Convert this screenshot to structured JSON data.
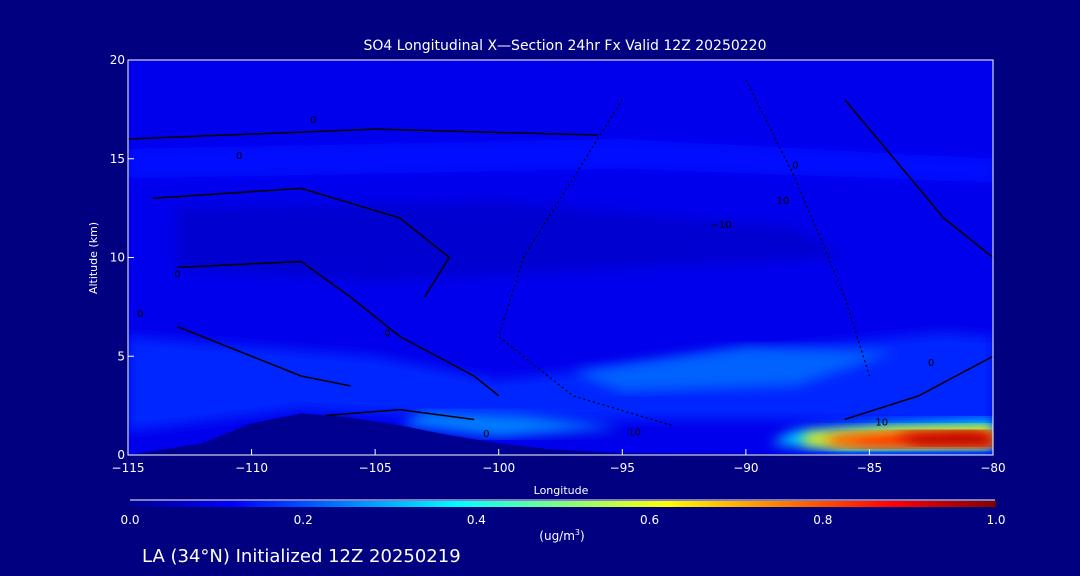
{
  "chart_data": {
    "type": "heatmap",
    "title": "SO4 Longitudinal X—Section 24hr  Fx Valid 12Z 20250220",
    "xlabel": "Longitude",
    "ylabel": "Altitude (km)",
    "xlim": [
      -115,
      -80
    ],
    "ylim": [
      0,
      20
    ],
    "xticks": [
      -115,
      -110,
      -105,
      -100,
      -95,
      -90,
      -85,
      -80
    ],
    "xtick_labels": [
      "−115",
      "−110",
      "−105",
      "−100",
      "−95",
      "−90",
      "−85",
      "−80"
    ],
    "yticks": [
      0,
      5,
      10,
      15,
      20
    ],
    "ytick_labels": [
      "0",
      "5",
      "10",
      "15",
      "20"
    ],
    "colorbar": {
      "range": [
        0.0,
        1.0
      ],
      "tick_labels": [
        "0.0",
        "0.2",
        "0.4",
        "0.6",
        "0.8",
        "1.0"
      ],
      "units_prefix": "(ug/m",
      "units_sup": "3",
      "units_suffix": ")"
    },
    "field_regions": [
      {
        "value": 0.1,
        "points": [
          [
            -115,
            20
          ],
          [
            -80,
            20
          ],
          [
            -80,
            0
          ],
          [
            -115,
            0
          ]
        ]
      },
      {
        "value": 0.07,
        "points": [
          [
            -113,
            12.5
          ],
          [
            -100,
            12.8
          ],
          [
            -88,
            11.5
          ],
          [
            -86,
            10
          ],
          [
            -95,
            9.5
          ],
          [
            -105,
            8.8
          ],
          [
            -113,
            9.5
          ]
        ]
      },
      {
        "value": 0.13,
        "points": [
          [
            -115,
            15.5
          ],
          [
            -95,
            16
          ],
          [
            -80,
            15
          ],
          [
            -80,
            13.8
          ],
          [
            -95,
            14.5
          ],
          [
            -115,
            14
          ]
        ]
      },
      {
        "value": 0.16,
        "points": [
          [
            -115,
            6
          ],
          [
            -105,
            5
          ],
          [
            -100,
            3.8
          ],
          [
            -95,
            4.5
          ],
          [
            -88,
            5.5
          ],
          [
            -82,
            6.2
          ],
          [
            -80,
            6
          ],
          [
            -80,
            1.5
          ],
          [
            -88,
            1.8
          ],
          [
            -95,
            1.8
          ],
          [
            -100,
            1.8
          ],
          [
            -108,
            2.3
          ],
          [
            -115,
            1.2
          ]
        ]
      },
      {
        "value": 0.22,
        "points": [
          [
            -97,
            4.2
          ],
          [
            -90,
            5.5
          ],
          [
            -84,
            5.2
          ],
          [
            -88,
            3.5
          ],
          [
            -95,
            3.2
          ]
        ]
      },
      {
        "value": 0.25,
        "points": [
          [
            -103,
            2.2
          ],
          [
            -99,
            2
          ],
          [
            -95,
            1.4
          ],
          [
            -100,
            0.9
          ],
          [
            -104,
            1.5
          ]
        ]
      },
      {
        "value": 0.35,
        "points": [
          [
            -88,
            1.2
          ],
          [
            -84,
            1.6
          ],
          [
            -80,
            1.8
          ],
          [
            -80,
            0.3
          ],
          [
            -86,
            0.2
          ],
          [
            -89,
            0.6
          ]
        ]
      },
      {
        "value": 0.65,
        "points": [
          [
            -87.5,
            1.1
          ],
          [
            -84,
            1.4
          ],
          [
            -80,
            1.5
          ],
          [
            -80,
            0.4
          ],
          [
            -86,
            0.3
          ],
          [
            -87.8,
            0.6
          ]
        ]
      },
      {
        "value": 0.85,
        "points": [
          [
            -86.5,
            0.9
          ],
          [
            -83,
            1.2
          ],
          [
            -80,
            1.2
          ],
          [
            -80,
            0.4
          ],
          [
            -85,
            0.4
          ],
          [
            -86.8,
            0.6
          ]
        ]
      },
      {
        "value": 0.95,
        "points": [
          [
            -84,
            1.0
          ],
          [
            -81,
            1.2
          ],
          [
            -80,
            1.0
          ],
          [
            -80,
            0.5
          ],
          [
            -83,
            0.5
          ]
        ]
      }
    ],
    "terrain": [
      [
        -115,
        0
      ],
      [
        -112,
        0.6
      ],
      [
        -110,
        1.6
      ],
      [
        -108,
        2.1
      ],
      [
        -106,
        1.9
      ],
      [
        -104,
        1.5
      ],
      [
        -102,
        1.0
      ],
      [
        -100,
        0.6
      ],
      [
        -98,
        0.3
      ],
      [
        -95,
        0.1
      ],
      [
        -80,
        0
      ]
    ],
    "contour_labels": [
      {
        "text": "0",
        "lon": -107.5,
        "alt": 16.8
      },
      {
        "text": "0",
        "lon": -110.5,
        "alt": 15
      },
      {
        "text": "0",
        "lon": -113,
        "alt": 9
      },
      {
        "text": "0",
        "lon": -114.5,
        "alt": 7
      },
      {
        "text": "0",
        "lon": -104.5,
        "alt": 6
      },
      {
        "text": "0",
        "lon": -100.5,
        "alt": 0.9
      },
      {
        "text": "10",
        "lon": -94.5,
        "alt": 1.0
      },
      {
        "text": "10",
        "lon": -84.5,
        "alt": 1.5
      },
      {
        "text": "10",
        "lon": -88.5,
        "alt": 12.7
      },
      {
        "text": "−10",
        "lon": -91,
        "alt": 11.5
      },
      {
        "text": "0",
        "lon": -88,
        "alt": 14.5
      },
      {
        "text": "0",
        "lon": -82.5,
        "alt": 4.5
      }
    ]
  },
  "footer": {
    "location": "LA (34°N) Initialized 12Z 20250219"
  }
}
